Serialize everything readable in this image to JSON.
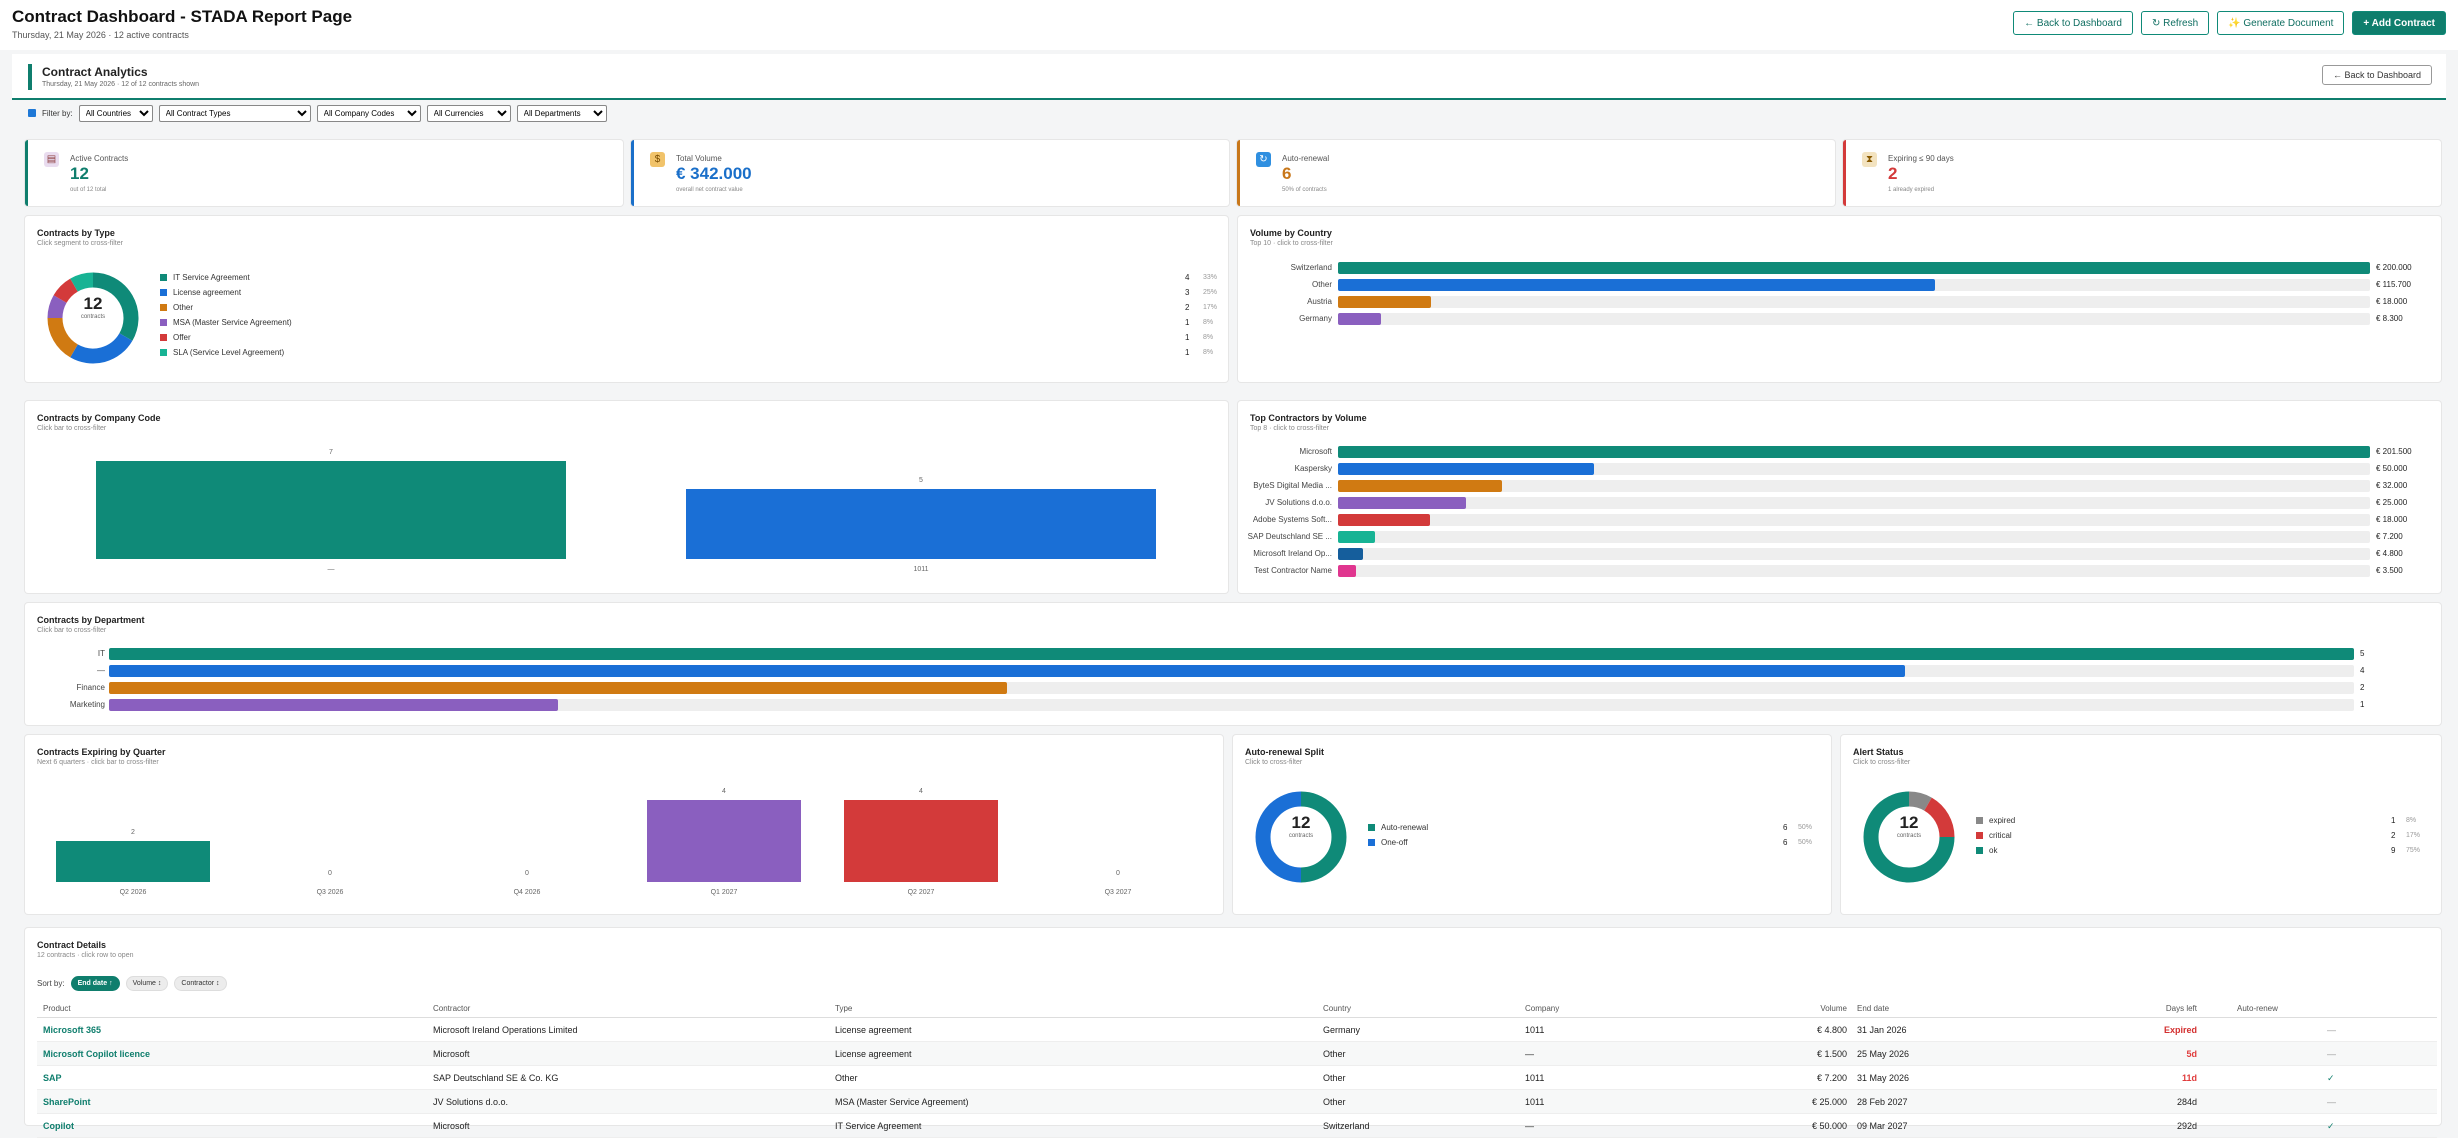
{
  "header": {
    "title": "Contract Dashboard - STADA Report Page",
    "subtitle": "Thursday, 21 May 2026 · 12 active contracts",
    "actions": [
      {
        "icon": "arrow-left-icon",
        "label": "← Back to Dashboard"
      },
      {
        "icon": "refresh-icon",
        "label": "↻ Refresh"
      },
      {
        "icon": "sparkle-icon",
        "label": "✨ Generate Document"
      },
      {
        "icon": "plus-icon",
        "label": "+ Add Contract"
      }
    ]
  },
  "analytics": {
    "title": "Contract Analytics",
    "subtitle": "Thursday, 21 May 2026 · 12 of 12 contracts shown",
    "back_label": "← Back to Dashboard"
  },
  "filters": {
    "label": "Filter by:",
    "options": [
      "All Countries",
      "All Contract Types",
      "All Company Codes",
      "All Currencies",
      "All Departments"
    ]
  },
  "kpis": [
    {
      "icon": "clipboard-icon",
      "label": "Active Contracts",
      "value": "12",
      "sub": "out of 12 total",
      "color": "#0f7e6d"
    },
    {
      "icon": "money-bag-icon",
      "label": "Total Volume",
      "value": "€ 342.000",
      "sub": "overall net contract value",
      "color": "#1a6fc9"
    },
    {
      "icon": "renew-icon",
      "label": "Auto-renewal",
      "value": "6",
      "sub": "50% of contracts",
      "color": "#c8771a"
    },
    {
      "icon": "hourglass-icon",
      "label": "Expiring ≤ 90 days",
      "value": "2",
      "sub": "1 already expired",
      "color": "#d33a3a"
    }
  ],
  "by_type": {
    "title": "Contracts by Type",
    "subtitle": "Click segment to cross-filter",
    "total": "12",
    "total_label": "contracts",
    "items": [
      {
        "name": "IT Service Agreement",
        "count": "4",
        "pct": "33%",
        "value": 4,
        "color": "#0f8a78"
      },
      {
        "name": "License agreement",
        "count": "3",
        "pct": "25%",
        "value": 3,
        "color": "#1a6fd6"
      },
      {
        "name": "Other",
        "count": "2",
        "pct": "17%",
        "value": 2,
        "color": "#d07a12"
      },
      {
        "name": "MSA (Master Service Agreement)",
        "count": "1",
        "pct": "8%",
        "value": 1,
        "color": "#8a5fbf"
      },
      {
        "name": "Offer",
        "count": "1",
        "pct": "8%",
        "value": 1,
        "color": "#d33a3a"
      },
      {
        "name": "SLA (Service Level Agreement)",
        "count": "1",
        "pct": "8%",
        "value": 1,
        "color": "#17b394"
      }
    ]
  },
  "by_country": {
    "title": "Volume by Country",
    "subtitle": "Top 10 · click to cross-filter",
    "max": 200000,
    "items": [
      {
        "name": "Switzerland",
        "value": 200000,
        "label": "€ 200.000",
        "color": "#0f8a78"
      },
      {
        "name": "Other",
        "value": 115700,
        "label": "€ 115.700",
        "color": "#1a6fd6"
      },
      {
        "name": "Austria",
        "value": 18000,
        "label": "€ 18.000",
        "color": "#d07a12"
      },
      {
        "name": "Germany",
        "value": 8300,
        "label": "€ 8.300",
        "color": "#8a5fbf"
      }
    ]
  },
  "by_company": {
    "title": "Contracts by Company Code",
    "subtitle": "Click bar to cross-filter",
    "max": 7,
    "items": [
      {
        "name": "—",
        "value": 7,
        "label": "7",
        "color": "#0f8a78"
      },
      {
        "name": "1011",
        "value": 5,
        "label": "5",
        "color": "#1a6fd6"
      }
    ]
  },
  "top_contractors": {
    "title": "Top Contractors by Volume",
    "subtitle": "Top 8 · click to cross-filter",
    "max": 201500,
    "items": [
      {
        "name": "Microsoft",
        "value": 201500,
        "label": "€ 201.500",
        "color": "#0f8a78"
      },
      {
        "name": "Kaspersky",
        "value": 50000,
        "label": "€ 50.000",
        "color": "#1a6fd6"
      },
      {
        "name": "ByteS Digital Media ...",
        "value": 32000,
        "label": "€ 32.000",
        "color": "#d07a12"
      },
      {
        "name": "JV Solutions d.o.o.",
        "value": 25000,
        "label": "€ 25.000",
        "color": "#8a5fbf"
      },
      {
        "name": "Adobe Systems Soft...",
        "value": 18000,
        "label": "€ 18.000",
        "color": "#d33a3a"
      },
      {
        "name": "SAP Deutschland SE ...",
        "value": 7200,
        "label": "€ 7.200",
        "color": "#17b394"
      },
      {
        "name": "Microsoft Ireland Op...",
        "value": 4800,
        "label": "€ 4.800",
        "color": "#155e9c"
      },
      {
        "name": "Test Contractor Name",
        "value": 3500,
        "label": "€ 3.500",
        "color": "#e0368f"
      }
    ]
  },
  "by_department": {
    "title": "Contracts by Department",
    "subtitle": "Click bar to cross-filter",
    "max": 5,
    "items": [
      {
        "name": "IT",
        "value": 5,
        "label": "5",
        "color": "#0f8a78"
      },
      {
        "name": "—",
        "value": 4,
        "label": "4",
        "color": "#1a6fd6"
      },
      {
        "name": "Finance",
        "value": 2,
        "label": "2",
        "color": "#d07a12"
      },
      {
        "name": "Marketing",
        "value": 1,
        "label": "1",
        "color": "#8a5fbf"
      }
    ]
  },
  "by_quarter": {
    "title": "Contracts Expiring by Quarter",
    "subtitle": "Next 6 quarters · click bar to cross-filter",
    "max": 4,
    "items": [
      {
        "name": "Q2 2026",
        "value": 2,
        "label": "2",
        "color": "#0f8a78"
      },
      {
        "name": "Q3 2026",
        "value": 0,
        "label": "0",
        "color": "#1a6fd6"
      },
      {
        "name": "Q4 2026",
        "value": 0,
        "label": "0",
        "color": "#d07a12"
      },
      {
        "name": "Q1 2027",
        "value": 4,
        "label": "4",
        "color": "#8a5fbf"
      },
      {
        "name": "Q2 2027",
        "value": 4,
        "label": "4",
        "color": "#d33a3a"
      },
      {
        "name": "Q3 2027",
        "value": 0,
        "label": "0",
        "color": "#17b394"
      }
    ]
  },
  "auto_renewal": {
    "title": "Auto-renewal Split",
    "subtitle": "Click to cross-filter",
    "total": "12",
    "total_label": "contracts",
    "items": [
      {
        "name": "Auto-renewal",
        "count": "6",
        "pct": "50%",
        "value": 6,
        "color": "#0f8a78"
      },
      {
        "name": "One-off",
        "count": "6",
        "pct": "50%",
        "value": 6,
        "color": "#1a6fd6"
      }
    ]
  },
  "alert_status": {
    "title": "Alert Status",
    "subtitle": "Click to cross-filter",
    "total": "12",
    "total_label": "contracts",
    "items": [
      {
        "name": "expired",
        "count": "1",
        "pct": "8%",
        "value": 1,
        "color": "#888888"
      },
      {
        "name": "critical",
        "count": "2",
        "pct": "17%",
        "value": 2,
        "color": "#d33a3a"
      },
      {
        "name": "ok",
        "count": "9",
        "pct": "75%",
        "value": 9,
        "color": "#0f8a78"
      }
    ]
  },
  "details": {
    "title": "Contract Details",
    "subtitle": "12 contracts · click row to open",
    "sort_label": "Sort by:",
    "sort_chips": [
      "End date ↑",
      "Volume ↕",
      "Contractor ↕"
    ],
    "columns": [
      "Product",
      "Contractor",
      "Type",
      "Country",
      "Company",
      "Volume",
      "End date",
      "Days left",
      "Auto-renew"
    ],
    "rows": [
      {
        "product": "Microsoft 365",
        "contractor": "Microsoft Ireland Operations Limited",
        "type": "License agreement",
        "country": "Germany",
        "company": "1011",
        "volume": "€ 4.800",
        "end": "31 Jan 2026",
        "days": "Expired",
        "days_class": "expired",
        "auto": "—",
        "auto_class": "dash"
      },
      {
        "product": "Microsoft Copilot licence",
        "contractor": "Microsoft",
        "type": "License agreement",
        "country": "Other",
        "company": "—",
        "volume": "€ 1.500",
        "end": "25 May 2026",
        "days": "5d",
        "days_class": "soon",
        "auto": "—",
        "auto_class": "dash"
      },
      {
        "product": "SAP",
        "contractor": "SAP Deutschland SE & Co. KG",
        "type": "Other",
        "country": "Other",
        "company": "1011",
        "volume": "€ 7.200",
        "end": "31 May 2026",
        "days": "11d",
        "days_class": "soon",
        "auto": "✓",
        "auto_class": "check"
      },
      {
        "product": "SharePoint",
        "contractor": "JV Solutions d.o.o.",
        "type": "MSA (Master Service Agreement)",
        "country": "Other",
        "company": "1011",
        "volume": "€ 25.000",
        "end": "28 Feb 2027",
        "days": "284d",
        "days_class": "",
        "auto": "—",
        "auto_class": "dash"
      },
      {
        "product": "Copilot",
        "contractor": "Microsoft",
        "type": "IT Service Agreement",
        "country": "Switzerland",
        "company": "—",
        "volume": "€ 50.000",
        "end": "09 Mar 2027",
        "days": "292d",
        "days_class": "",
        "auto": "✓",
        "auto_class": "check"
      }
    ]
  }
}
